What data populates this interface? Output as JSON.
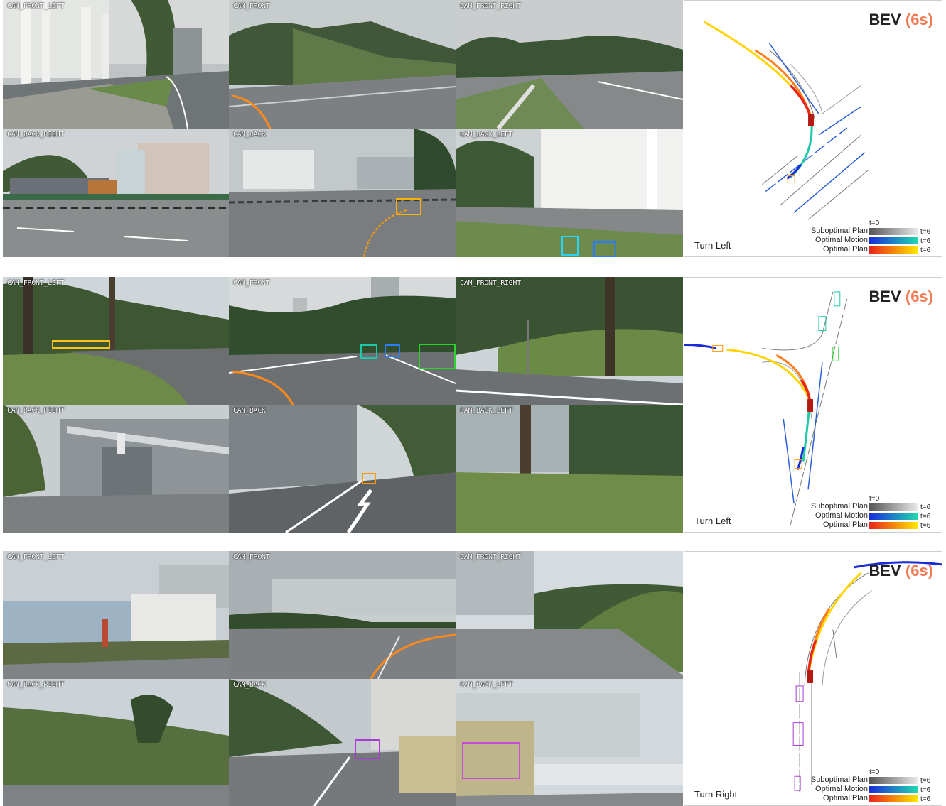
{
  "rows": [
    {
      "maneuver": "Turn Left",
      "cameras": {
        "front_left": "CAM_FRONT_LEFT",
        "front": "CAM_FRONT",
        "front_right": "CAM_FRONT_RIGHT",
        "back_right": "CAM_BACK_RIGHT",
        "back": "CAM_BACK",
        "back_left": "CAM_BACK_LEFT"
      }
    },
    {
      "maneuver": "Turn Left",
      "cameras": {
        "front_left": "CAM_FRONT_LEFT",
        "front": "CAM_FRONT",
        "front_right": "CAM_FRONT_RIGHT",
        "back_right": "CAM_BACK_RIGHT",
        "back": "CAM_BACK",
        "back_left": "CAM_BACK_LEFT"
      }
    },
    {
      "maneuver": "Turn Right",
      "cameras": {
        "front_left": "CAM_FRONT_LEFT",
        "front": "CAM_FRONT",
        "front_right": "CAM_FRONT_RIGHT",
        "back_right": "CAM_BACK_RIGHT",
        "back": "CAM_BACK",
        "back_left": "CAM_BACK_LEFT"
      }
    }
  ],
  "bev": {
    "title": "BEV",
    "duration": "(6s)",
    "legend": {
      "t_start": "t=0",
      "t_end": "t=6",
      "suboptimal_plan": "Suboptimal Plan",
      "optimal_motion": "Optimal Motion",
      "optimal_plan": "Optimal Plan"
    }
  },
  "colors": {
    "accent": "#ef7a52",
    "suboptimal_plan": [
      "#555555",
      "#e8e8e8"
    ],
    "optimal_motion": [
      "#1a2bd8",
      "#22d6b0"
    ],
    "optimal_plan": [
      "#e8241a",
      "#ffe600"
    ]
  }
}
